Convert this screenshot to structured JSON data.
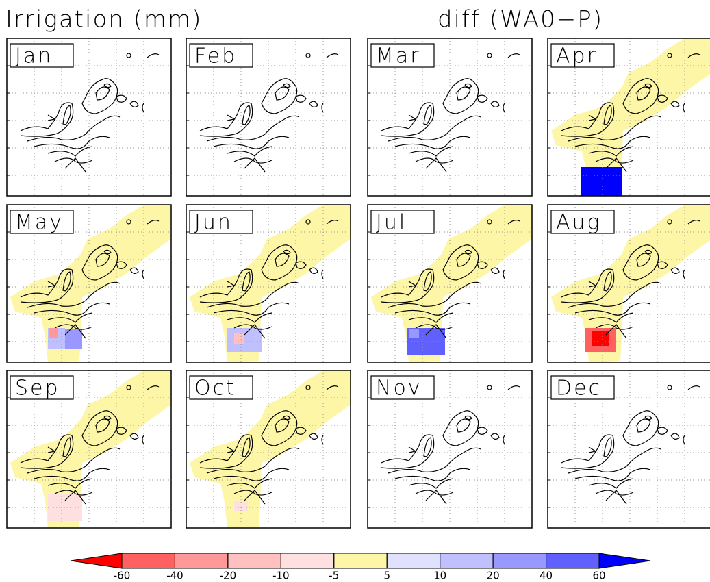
{
  "header": {
    "title": "Irrigation (mm)",
    "subtitle": "diff (WA0−P)"
  },
  "panels": [
    {
      "label": "Jan"
    },
    {
      "label": "Feb"
    },
    {
      "label": "Mar"
    },
    {
      "label": "Apr"
    },
    {
      "label": "May"
    },
    {
      "label": "Jun"
    },
    {
      "label": "Jul"
    },
    {
      "label": "Aug"
    },
    {
      "label": "Sep"
    },
    {
      "label": "Oct"
    },
    {
      "label": "Nov"
    },
    {
      "label": "Dec"
    }
  ],
  "colorbar": {
    "ticks": [
      -60,
      -40,
      -20,
      -10,
      -5,
      5,
      10,
      20,
      40,
      60
    ],
    "colors": [
      "#ff0000",
      "#ff6060",
      "#ff9898",
      "#ffc0c0",
      "#ffe0e0",
      "#fcf6a6",
      "#e0e0ff",
      "#c0c0ff",
      "#9898ff",
      "#6060ff",
      "#0000ff"
    ]
  }
}
